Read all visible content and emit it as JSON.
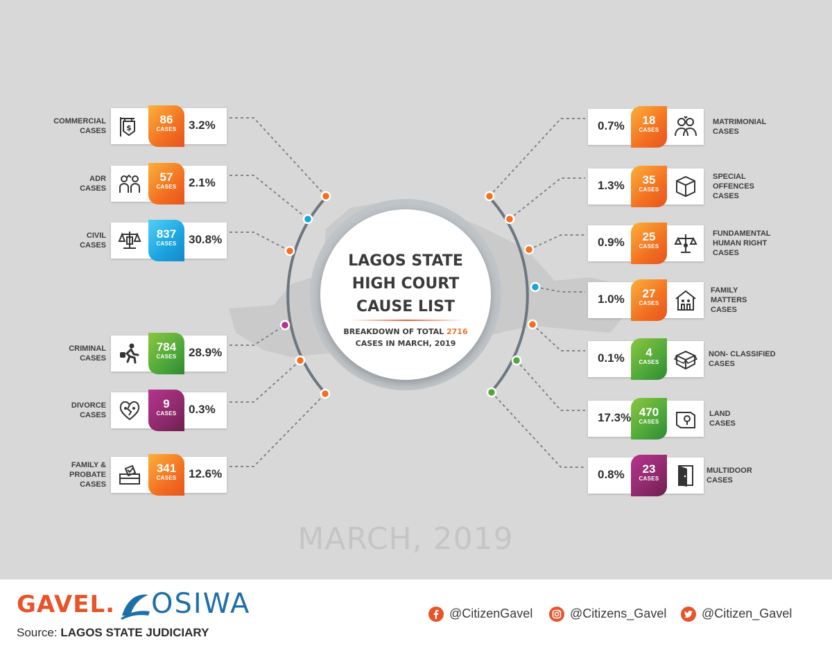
{
  "center": {
    "title_line1": "LAGOS STATE",
    "title_line2": "HIGH COURT",
    "title_line3": "CAUSE LIST",
    "subtitle_pre": "BREAKDOWN OF TOTAL",
    "total": "2716",
    "subtitle_post": "CASES IN MARCH, 2019"
  },
  "watermark": "MARCH, 2019",
  "colors": {
    "orange": "#f37021",
    "blue": "#1ba3e0",
    "green": "#4ea83a",
    "purple": "#8e2a6b",
    "background": "#d8d8d8"
  },
  "cases_word": "CASES",
  "chart_data": {
    "type": "table",
    "title": "LAGOS STATE HIGH COURT CAUSE LIST",
    "subtitle": "BREAKDOWN OF TOTAL 2716 CASES IN MARCH, 2019",
    "total": 2716,
    "left": [
      {
        "label": [
          "COMMERCIAL",
          "CASES"
        ],
        "value": 86,
        "percent": "3.2%",
        "color": "orange",
        "icon": "shop-sign-icon"
      },
      {
        "label": [
          "ADR",
          "CASES"
        ],
        "value": 57,
        "percent": "2.1%",
        "color": "orange",
        "icon": "mediation-icon"
      },
      {
        "label": [
          "CIVIL",
          "CASES"
        ],
        "value": 837,
        "percent": "30.8%",
        "color": "blue",
        "icon": "scales-icon"
      },
      {
        "label": [
          "CRIMINAL",
          "CASES"
        ],
        "value": 784,
        "percent": "28.9%",
        "color": "green",
        "icon": "thief-running-icon"
      },
      {
        "label": [
          "DIVORCE",
          "CASES"
        ],
        "value": 9,
        "percent": "0.3%",
        "color": "purple",
        "icon": "broken-heart-icon"
      },
      {
        "label": [
          "FAMILY &",
          "PROBATE",
          "CASES"
        ],
        "value": 341,
        "percent": "12.6%",
        "color": "orange",
        "icon": "ballot-box-icon"
      }
    ],
    "right": [
      {
        "label": [
          "MATRIMONIAL",
          "CASES"
        ],
        "value": 18,
        "percent": "0.7%",
        "color": "orange",
        "icon": "couple-icon"
      },
      {
        "label": [
          "SPECIAL",
          "OFFENCES",
          "CASES"
        ],
        "value": 35,
        "percent": "1.3%",
        "color": "orange",
        "icon": "package-icon"
      },
      {
        "label": [
          "FUNDAMENTAL",
          "HUMAN RIGHT",
          "CASES"
        ],
        "value": 25,
        "percent": "0.9%",
        "color": "orange",
        "icon": "rights-scale-icon"
      },
      {
        "label": [
          "FAMILY",
          "MATTERS",
          "CASES"
        ],
        "value": 27,
        "percent": "1.0%",
        "color": "orange",
        "icon": "family-house-icon"
      },
      {
        "label": [
          "NON- CLASSIFIED",
          "CASES"
        ],
        "value": 4,
        "percent": "0.1%",
        "color": "green",
        "icon": "open-box-icon"
      },
      {
        "label": [
          "LAND",
          "CASES"
        ],
        "value": 470,
        "percent": "17.3%",
        "color": "green",
        "icon": "land-map-icon"
      },
      {
        "label": [
          "MULTIDOOR",
          "CASES"
        ],
        "value": 23,
        "percent": "0.8%",
        "color": "purple",
        "icon": "door-icon"
      }
    ]
  },
  "footer": {
    "gavel_logo": "GAVEL.",
    "osiwa_logo": "OSIWA",
    "source_label": "Source:",
    "source_value": "LAGOS STATE JUDICIARY",
    "facebook": "@CitizenGavel",
    "instagram": "@Citizens_Gavel",
    "twitter": "@Citizen_Gavel"
  }
}
